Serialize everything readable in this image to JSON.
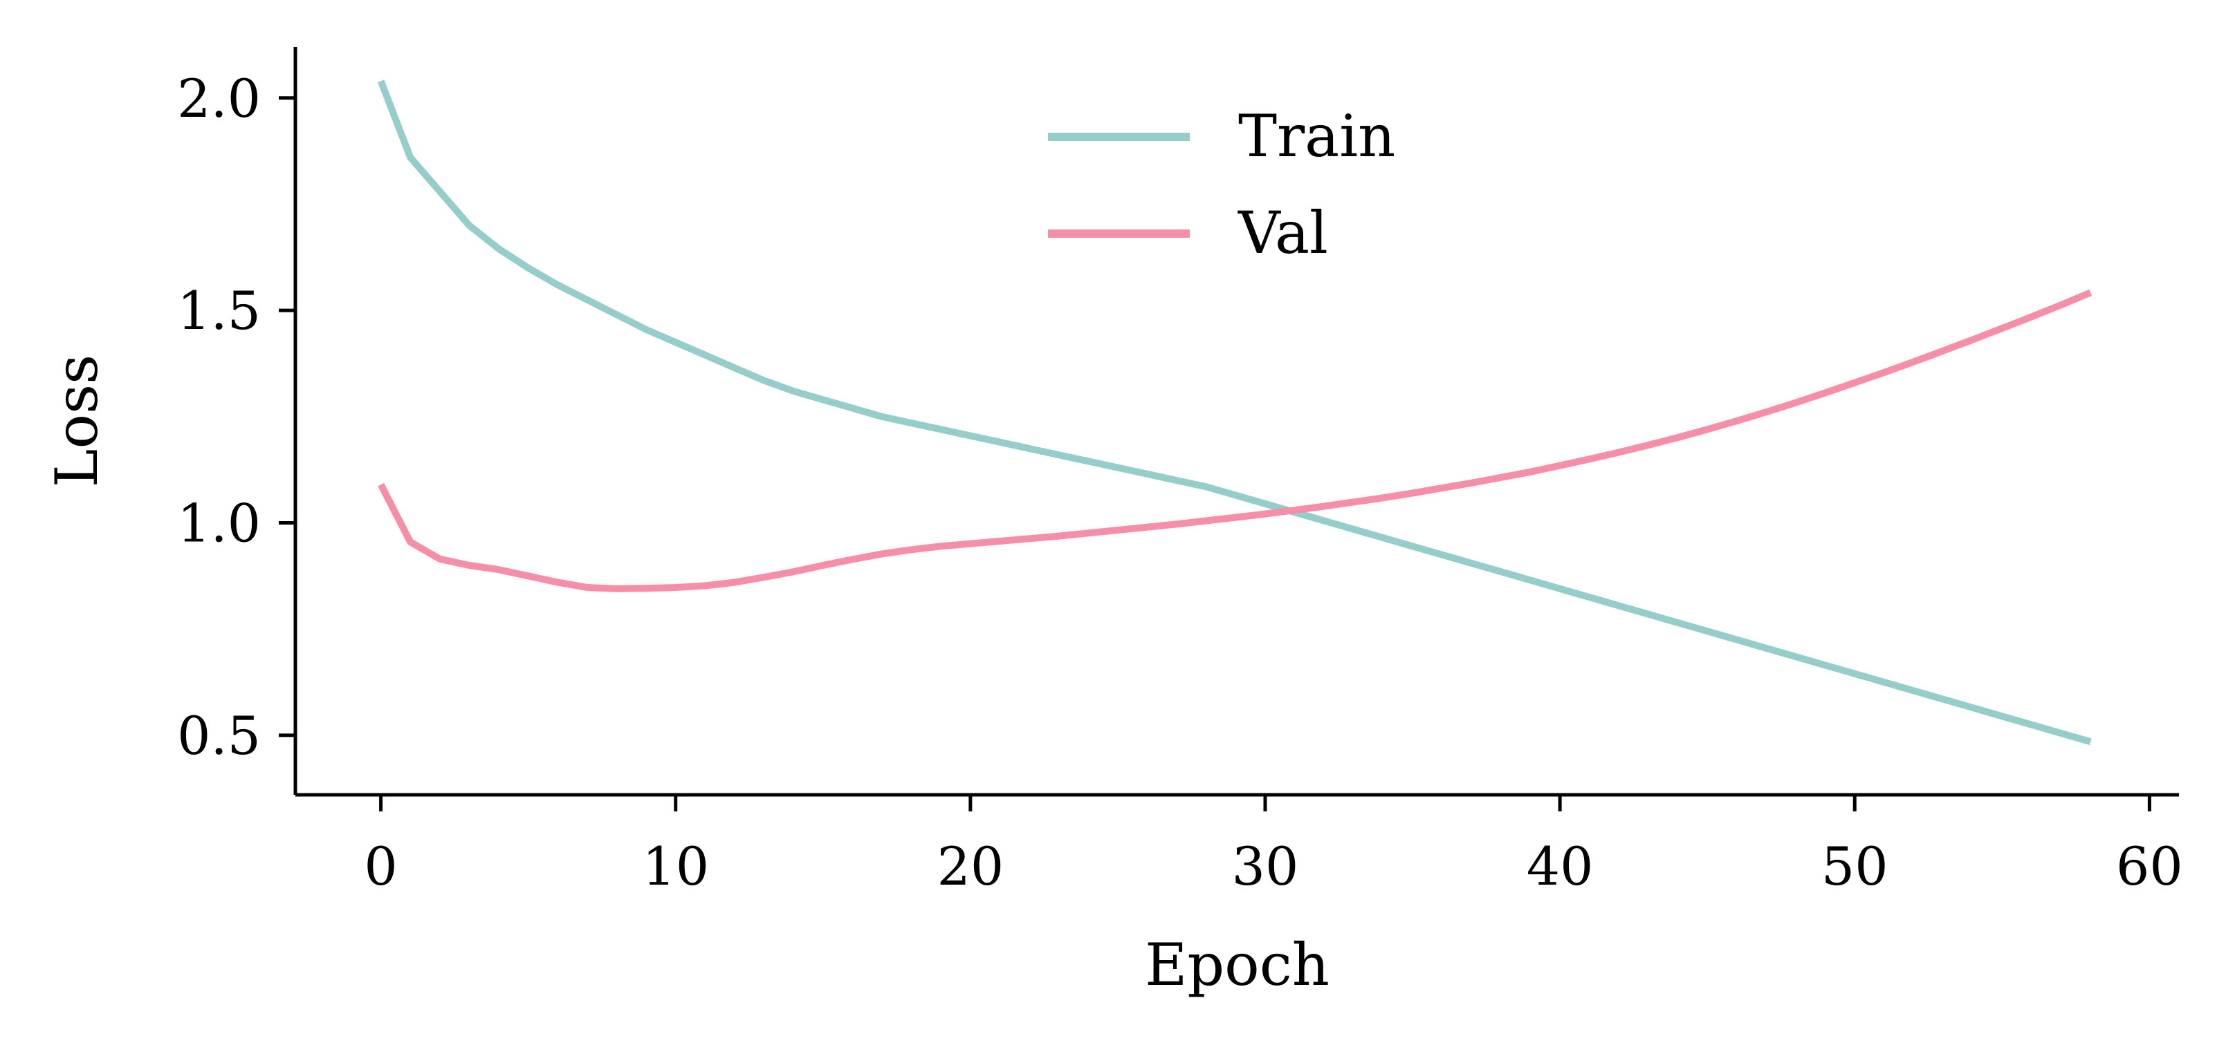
{
  "chart_data": {
    "type": "line",
    "title": "",
    "xlabel": "Epoch",
    "ylabel": "Loss",
    "xlim": [
      -2.9,
      61
    ],
    "ylim": [
      0.36,
      2.12
    ],
    "xticks": [
      0,
      10,
      20,
      30,
      40,
      50,
      60
    ],
    "xtick_labels": [
      "0",
      "10",
      "20",
      "30",
      "40",
      "50",
      "60"
    ],
    "yticks": [
      0.5,
      1.0,
      1.5,
      2.0
    ],
    "ytick_labels": [
      "0.5",
      "1.0",
      "1.5",
      "2.0"
    ],
    "grid": false,
    "legend_position": "upper center",
    "x": [
      0,
      1,
      2,
      3,
      4,
      5,
      6,
      7,
      8,
      9,
      10,
      11,
      12,
      13,
      14,
      15,
      16,
      17,
      18,
      19,
      20,
      21,
      22,
      23,
      24,
      25,
      26,
      27,
      28,
      29,
      30,
      31,
      32,
      33,
      34,
      35,
      36,
      37,
      38,
      39,
      40,
      41,
      42,
      43,
      44,
      45,
      46,
      47,
      48,
      49,
      50,
      51,
      52,
      53,
      54,
      55,
      56,
      57,
      58
    ],
    "series": [
      {
        "name": "Train",
        "color": "#95cdcb",
        "values": [
          2.04,
          1.86,
          1.78,
          1.7,
          1.645,
          1.6,
          1.56,
          1.525,
          1.49,
          1.455,
          1.425,
          1.395,
          1.365,
          1.335,
          1.31,
          1.29,
          1.27,
          1.25,
          1.235,
          1.22,
          1.205,
          1.19,
          1.175,
          1.16,
          1.145,
          1.13,
          1.115,
          1.1,
          1.085,
          1.065,
          1.045,
          1.025,
          1.005,
          0.985,
          0.965,
          0.945,
          0.925,
          0.905,
          0.885,
          0.865,
          0.845,
          0.825,
          0.805,
          0.785,
          0.765,
          0.745,
          0.725,
          0.705,
          0.685,
          0.665,
          0.645,
          0.625,
          0.605,
          0.585,
          0.565,
          0.545,
          0.525,
          0.505,
          0.485
        ]
      },
      {
        "name": "Val",
        "color": "#f78ea8",
        "values": [
          1.09,
          0.955,
          0.915,
          0.9,
          0.89,
          0.875,
          0.86,
          0.848,
          0.845,
          0.846,
          0.848,
          0.852,
          0.86,
          0.872,
          0.885,
          0.9,
          0.914,
          0.927,
          0.937,
          0.945,
          0.951,
          0.957,
          0.963,
          0.969,
          0.976,
          0.983,
          0.99,
          0.997,
          1.005,
          1.013,
          1.021,
          1.03,
          1.039,
          1.049,
          1.059,
          1.07,
          1.082,
          1.094,
          1.107,
          1.12,
          1.135,
          1.15,
          1.166,
          1.183,
          1.201,
          1.22,
          1.24,
          1.261,
          1.283,
          1.306,
          1.33,
          1.354,
          1.379,
          1.405,
          1.431,
          1.458,
          1.485,
          1.513,
          1.542
        ]
      }
    ]
  }
}
